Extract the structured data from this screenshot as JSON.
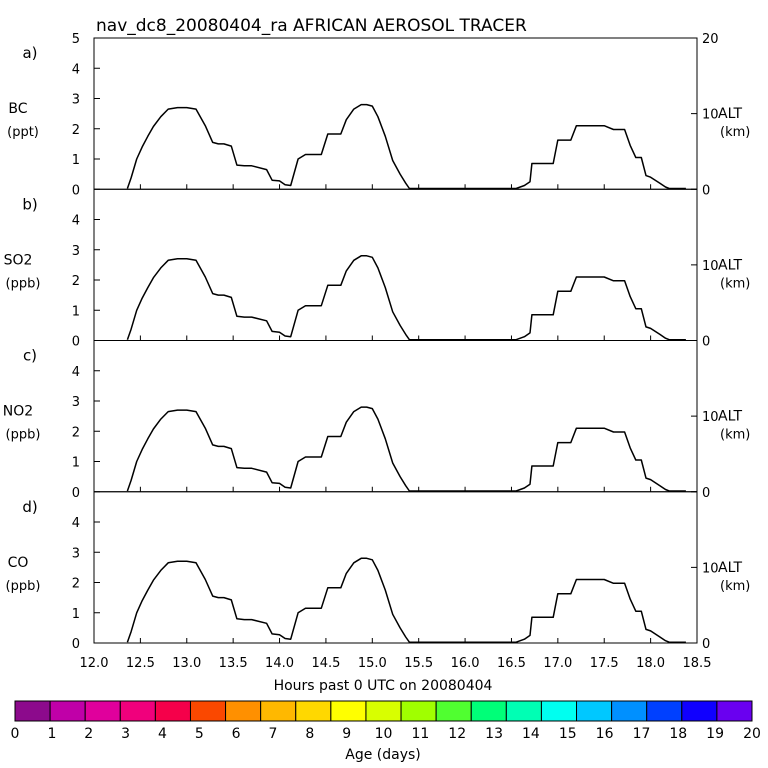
{
  "chart_data": {
    "type": "line",
    "title": "nav_dc8_20080404_ra AFRICAN AEROSOL TRACER",
    "xlabel": "Hours past 0 UTC on 20080404",
    "xlim": [
      12.0,
      18.5
    ],
    "x_ticks": [
      "12.0",
      "12.5",
      "13.0",
      "13.5",
      "14.0",
      "14.5",
      "15.0",
      "15.5",
      "16.0",
      "16.5",
      "17.0",
      "17.5",
      "18.0",
      "18.5"
    ],
    "x_tick_values": [
      12.0,
      12.5,
      13.0,
      13.5,
      14.0,
      14.5,
      15.0,
      15.5,
      16.0,
      16.5,
      17.0,
      17.5,
      18.0,
      18.5
    ],
    "right_axis": {
      "label": "ALT",
      "unit": "(km)",
      "ylim": [
        0,
        20
      ],
      "ticks": [
        "0",
        "10",
        "20"
      ]
    },
    "altitude_series": {
      "name": "ALT (km)",
      "x": [
        12.36,
        12.4,
        12.46,
        12.52,
        12.58,
        12.64,
        12.72,
        12.8,
        12.9,
        13.0,
        13.1,
        13.2,
        13.28,
        13.34,
        13.4,
        13.48,
        13.54,
        13.62,
        13.7,
        13.86,
        13.92,
        14.0,
        14.06,
        14.12,
        14.2,
        14.28,
        14.35,
        14.45,
        14.52,
        14.6,
        14.66,
        14.72,
        14.8,
        14.88,
        14.94,
        15.0,
        15.06,
        15.14,
        15.22,
        15.3,
        15.36,
        15.4,
        15.46,
        15.55,
        15.65,
        15.75,
        15.82,
        16.0,
        16.2,
        16.4,
        16.55,
        16.64,
        16.7,
        16.72,
        16.8,
        16.95,
        17.0,
        17.06,
        17.14,
        17.2,
        17.26,
        17.34,
        17.4,
        17.5,
        17.6,
        17.72,
        17.78,
        17.84,
        17.9,
        17.95,
        18.0,
        18.1,
        18.16,
        18.2,
        18.28,
        18.33,
        18.38
      ],
      "y": [
        0.1,
        1.5,
        4.0,
        5.6,
        7.0,
        8.3,
        9.6,
        10.6,
        10.8,
        10.8,
        10.6,
        8.4,
        6.2,
        6.0,
        6.0,
        5.7,
        3.2,
        3.1,
        3.1,
        2.6,
        1.2,
        1.1,
        0.6,
        0.5,
        4.0,
        4.6,
        4.6,
        4.6,
        7.3,
        7.3,
        7.3,
        9.2,
        10.6,
        11.2,
        11.2,
        11.0,
        9.6,
        7.0,
        3.8,
        2.0,
        0.8,
        0.1,
        0.1,
        0.1,
        0.1,
        0.1,
        0.1,
        0.1,
        0.1,
        0.1,
        0.1,
        0.5,
        1.0,
        3.4,
        3.4,
        3.4,
        6.5,
        6.5,
        6.5,
        8.4,
        8.4,
        8.4,
        8.4,
        8.4,
        7.9,
        7.9,
        5.8,
        4.2,
        4.2,
        1.8,
        1.6,
        0.8,
        0.3,
        0.1,
        0.1,
        0.1,
        0.1
      ]
    },
    "panels": [
      {
        "letter": "a)",
        "label": "BC",
        "unit": "(ppt)",
        "ylim": [
          0,
          5
        ],
        "y_ticks": [
          "0",
          "1",
          "2",
          "3",
          "4",
          "5"
        ]
      },
      {
        "letter": "b)",
        "label": "SO2",
        "unit": "(ppb)",
        "ylim": [
          0,
          5
        ],
        "y_ticks": [
          "0",
          "1",
          "2",
          "3",
          "4"
        ]
      },
      {
        "letter": "c)",
        "label": "NO2",
        "unit": "(ppb)",
        "ylim": [
          0,
          5
        ],
        "y_ticks": [
          "0",
          "1",
          "2",
          "3",
          "4"
        ]
      },
      {
        "letter": "d)",
        "label": "CO",
        "unit": "(ppb)",
        "ylim": [
          0,
          5
        ],
        "y_ticks": [
          "0",
          "1",
          "2",
          "3",
          "4"
        ]
      }
    ],
    "colorbar": {
      "label": "Age (days)",
      "range": [
        0,
        20
      ],
      "tick_labels": [
        "0",
        "1",
        "2",
        "3",
        "4",
        "5",
        "6",
        "7",
        "8",
        "9",
        "10",
        "11",
        "12",
        "13",
        "14",
        "15",
        "16",
        "17",
        "18",
        "19",
        "20"
      ],
      "colors": [
        "#8c0a8c",
        "#c000a8",
        "#e0009c",
        "#f0007c",
        "#f5004a",
        "#fa4800",
        "#ff9000",
        "#ffb800",
        "#ffd800",
        "#ffff00",
        "#d8ff00",
        "#a0ff00",
        "#50ff30",
        "#00ff78",
        "#00ffb4",
        "#00fff0",
        "#00c8ff",
        "#0090ff",
        "#0040ff",
        "#1000ff",
        "#6a00f0"
      ]
    }
  }
}
